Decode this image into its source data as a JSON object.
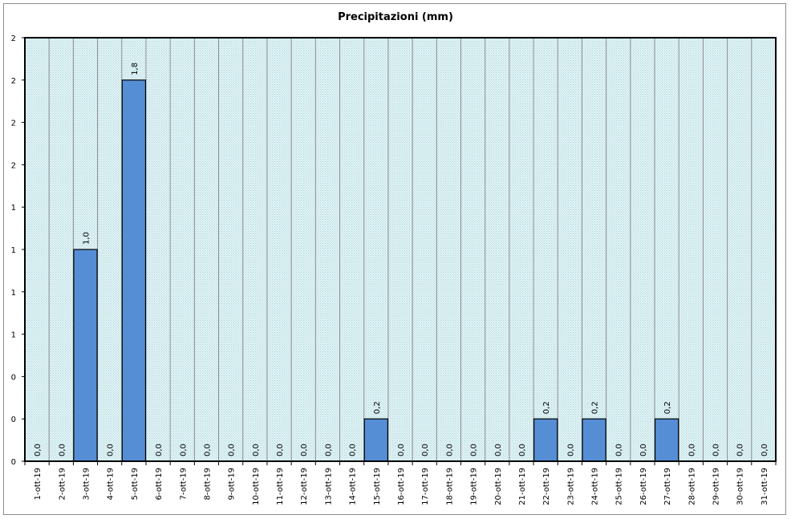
{
  "chart_data": {
    "type": "bar",
    "title": "Precipitazioni (mm)",
    "xlabel": "",
    "ylabel": "",
    "ylim": [
      0,
      2
    ],
    "y_tick_labels": [
      "0",
      "0",
      "0",
      "1",
      "1",
      "1",
      "1",
      "2",
      "2",
      "2"
    ],
    "grid": true,
    "categories": [
      "1-ott-19",
      "2-ott-19",
      "3-ott-19",
      "4-ott-19",
      "5-ott-19",
      "6-ott-19",
      "7-ott-19",
      "8-ott-19",
      "9-ott-19",
      "10-ott-19",
      "11-ott-19",
      "12-ott-19",
      "13-ott-19",
      "14-ott-19",
      "15-ott-19",
      "16-ott-19",
      "17-ott-19",
      "18-ott-19",
      "19-ott-19",
      "20-ott-19",
      "21-ott-19",
      "22-ott-19",
      "23-ott-19",
      "24-ott-19",
      "25-ott-19",
      "26-ott-19",
      "27-ott-19",
      "28-ott-19",
      "29-ott-19",
      "30-ott-19",
      "31-ott-19"
    ],
    "values": [
      0,
      0,
      1.0,
      0,
      1.8,
      0,
      0,
      0,
      0,
      0,
      0,
      0,
      0,
      0,
      0.2,
      0,
      0,
      0,
      0,
      0,
      0,
      0.2,
      0,
      0.2,
      0,
      0,
      0.2,
      0,
      0,
      0,
      0
    ],
    "data_labels": [
      "0,0",
      "0,0",
      "1,0",
      "0,0",
      "1,8",
      "0,0",
      "0,0",
      "0,0",
      "0,0",
      "0,0",
      "0,0",
      "0,0",
      "0,0",
      "0,0",
      "0,2",
      "0,0",
      "0,0",
      "0,0",
      "0,0",
      "0,0",
      "0,0",
      "0,2",
      "0,0",
      "0,2",
      "0,0",
      "0,0",
      "0,2",
      "0,0",
      "0,0",
      "0,0",
      "0,0"
    ],
    "colors": {
      "bar": "#558ed5",
      "bar_border": "#000000",
      "plot_bg": "#d6eef2",
      "grid": "#8c8c8c"
    }
  }
}
